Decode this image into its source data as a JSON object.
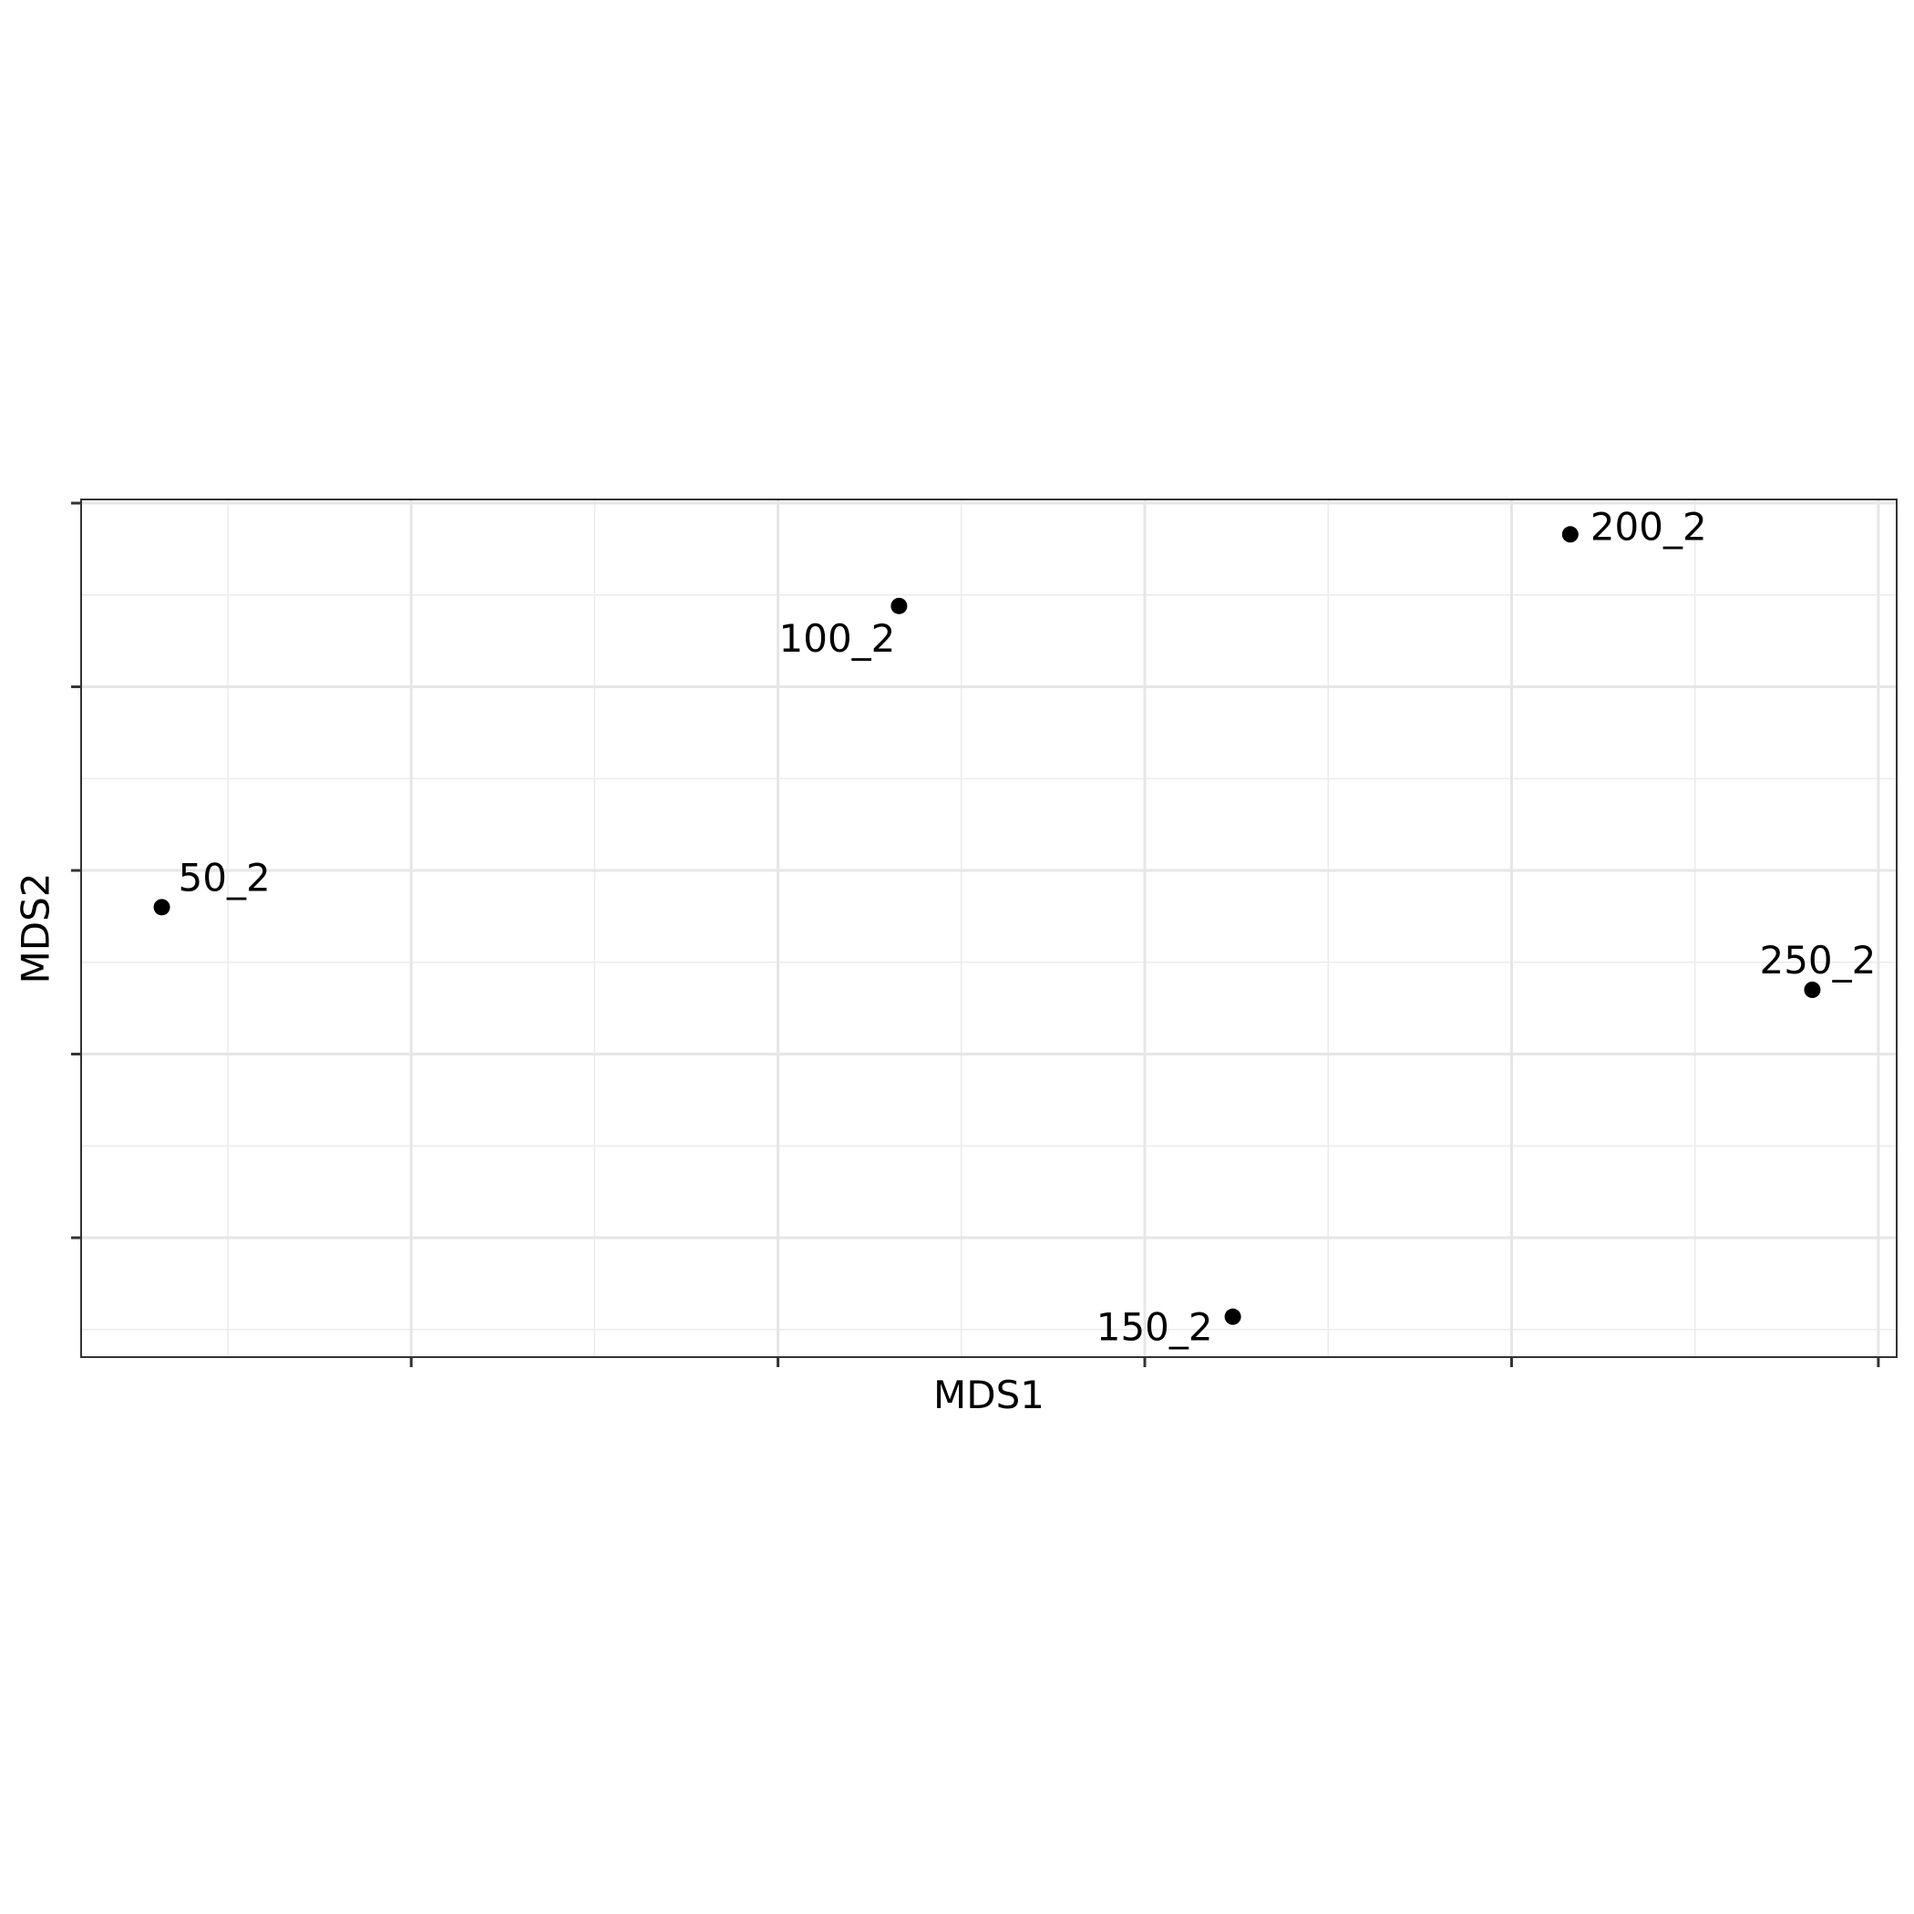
{
  "chart_data": {
    "type": "scatter",
    "title": "",
    "xlabel": "MDS1",
    "ylabel": "MDS2",
    "xlim": [
      -0.43,
      0.56
    ],
    "ylim": [
      -0.265,
      0.202
    ],
    "grid": true,
    "x_major_ticks": [
      -0.25,
      -0.05,
      0.15,
      0.35,
      0.55
    ],
    "x_minor_ticks": [
      -0.35,
      -0.15,
      0.05,
      0.25,
      0.45
    ],
    "y_major_ticks": [
      -0.2,
      -0.1,
      0.0,
      0.1,
      0.2
    ],
    "y_minor_ticks": [
      -0.25,
      -0.15,
      -0.05,
      0.05,
      0.15
    ],
    "tick_labels_visible": false,
    "point_color": "#000000",
    "points": [
      {
        "label": "50_2",
        "x": -0.386,
        "y": -0.02
      },
      {
        "label": "100_2",
        "x": 0.016,
        "y": 0.144
      },
      {
        "label": "150_2",
        "x": 0.198,
        "y": -0.243
      },
      {
        "label": "200_2",
        "x": 0.382,
        "y": 0.183
      },
      {
        "label": "250_2",
        "x": 0.514,
        "y": -0.065
      }
    ]
  }
}
